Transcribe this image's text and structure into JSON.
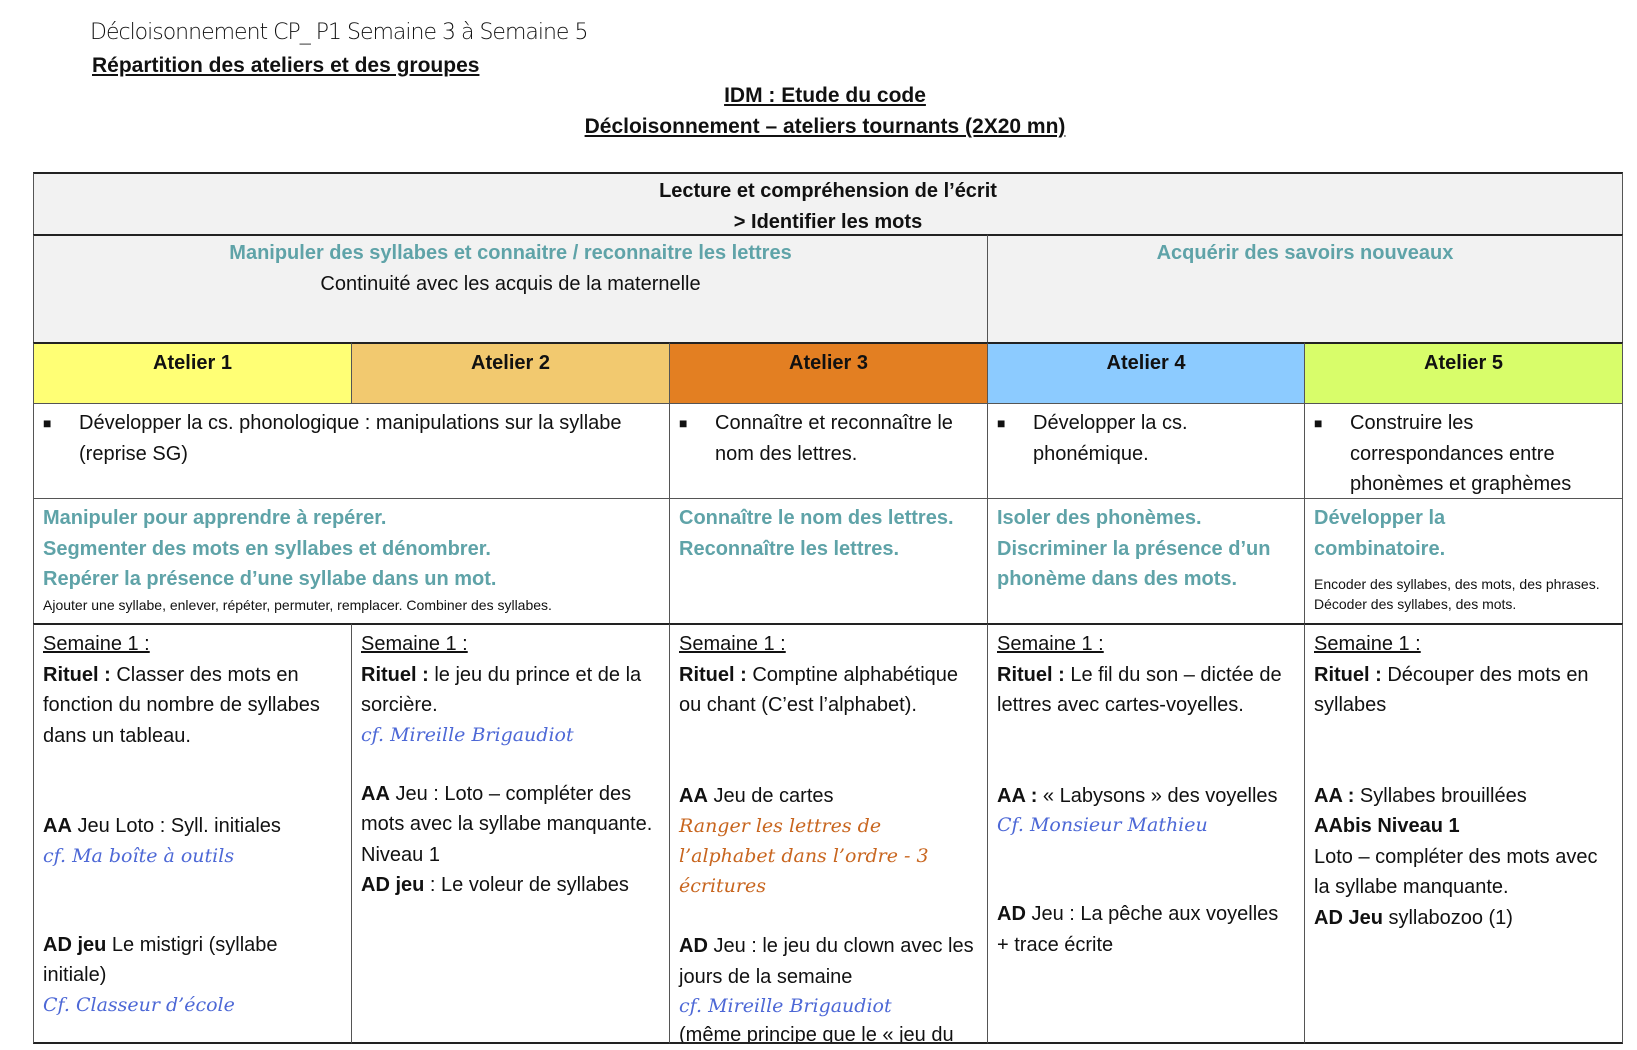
{
  "header": {
    "handwritten_title": "Décloisonnement CP_ P1  Semaine 3 à  Semaine 5",
    "subtitle": "Répartition des ateliers et des groupes",
    "title_line1": "IDM : Etude du code ",
    "title_line2": "Décloisonnement – ateliers tournants (2X20 mn)"
  },
  "table": {
    "domain_line1": "Lecture et compréhension de l’écrit",
    "domain_line2": "> Identifier les mots",
    "section_left_title": "Manipuler des syllabes et connaitre / reconnaitre les lettres",
    "section_left_sub": "Continuité avec les acquis de la maternelle",
    "section_right_title": "Acquérir des savoirs nouveaux",
    "ateliers": [
      {
        "label": "Atelier 1",
        "color": "#ffff75"
      },
      {
        "label": "Atelier 2",
        "color": "#f2c96f"
      },
      {
        "label": "Atelier 3",
        "color": "#e37f22"
      },
      {
        "label": "Atelier 4",
        "color": "#8ccbff"
      },
      {
        "label": "Atelier 5",
        "color": "#d8fd6a"
      }
    ],
    "objectives": [
      "Développer la cs. phonologique : manipulations sur la syllabe (reprise SG)",
      "Connaître et reconnaître le nom des lettres.",
      "Développer la cs. phonémique.",
      "Construire les correspondances entre phonèmes et graphèmes"
    ],
    "skills": {
      "a12": [
        "Manipuler pour apprendre à repérer.",
        "Segmenter des mots en syllabes et dénombrer.",
        "Repérer la présence d’une syllabe dans un mot."
      ],
      "a12_note": "Ajouter une syllabe, enlever, répéter, permuter, remplacer. Combiner des syllabes.",
      "a3": [
        "Connaître le nom des lettres.",
        "Reconnaître les lettres."
      ],
      "a4": [
        "Isoler des phonèmes.",
        "Discriminer la présence d’un phonème dans des mots."
      ],
      "a5": [
        "Développer la combinatoire."
      ],
      "a5_note": "Encoder des syllabes, des mots, des phrases. Décoder des syllabes, des mots."
    },
    "weeks": [
      {
        "semaine": "Semaine 1 :",
        "rituel_label": "Rituel :",
        "rituel": " Classer des mots en fonction du nombre de syllabes dans un tableau.",
        "aa_label": "AA",
        "aa": " Jeu Loto : Syll. initiales",
        "aa_ref": "cf. Ma boîte à outils",
        "ad_label": "AD jeu",
        "ad": " Le mistigri (syllabe initiale)",
        "ad_ref": "Cf. Classeur d’école"
      },
      {
        "semaine": "Semaine 1 :",
        "rituel_label": "Rituel :",
        "rituel": " le jeu du prince et de la sorcière.",
        "rituel_ref": "cf. Mireille Brigaudiot",
        "aa_label": "AA",
        "aa": " Jeu : Loto – compléter des mots avec la syllabe manquante.",
        "aa_extra": "Niveau 1",
        "ad_label": "AD jeu",
        "ad": " : Le voleur de syllabes"
      },
      {
        "semaine": "Semaine 1 :",
        "rituel_label": "Rituel :",
        "rituel": " Comptine alphabétique ou chant (C’est l’alphabet).",
        "aa_label": "AA",
        "aa": " Jeu de cartes",
        "aa_ref": "Ranger les lettres de l’alphabet dans l’ordre - 3 écritures",
        "ad_label": "AD",
        "ad": " Jeu : le jeu du clown avec les jours de la semaine",
        "ad_ref": "cf. Mireille Brigaudiot",
        "ad_extra": "(même principe que le « jeu du pendu »)"
      },
      {
        "semaine": "Semaine 1 :",
        "rituel_label": "Rituel :",
        "rituel": " Le fil du son – dictée de lettres avec cartes-voyelles.",
        "aa_label": "AA :",
        "aa": " « Labysons » des voyelles",
        "aa_ref": "Cf. Monsieur Mathieu",
        "ad_label": "AD",
        "ad": " Jeu : La pêche aux voyelles",
        "ad_extra": "+ trace écrite"
      },
      {
        "semaine": "Semaine 1 :",
        "rituel_label": "Rituel :",
        "rituel": " Découper des mots en syllabes",
        "aa_label": "AA :",
        "aa": " Syllabes brouillées",
        "aabis_label": "AAbis Niveau 1",
        "aabis": "Loto – compléter des mots avec la syllabe manquante.",
        "ad_label": "AD Jeu",
        "ad": " syllabozoo (1)"
      }
    ]
  }
}
